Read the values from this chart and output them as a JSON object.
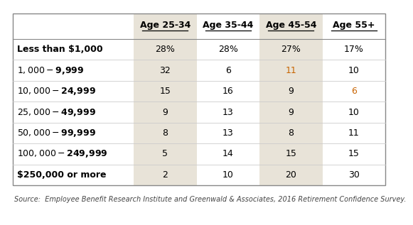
{
  "columns": [
    "Age 25-34",
    "Age 35-44",
    "Age 45-54",
    "Age 55+"
  ],
  "rows": [
    "Less than $1,000",
    "$1,000 - $9,999",
    "$10,000 - $24,999",
    "$25,000 - $49,999",
    "$50,000 - $99,999",
    "$100,000 - $249,999",
    "$250,000 or more"
  ],
  "values": [
    [
      "28%",
      "28%",
      "27%",
      "17%"
    ],
    [
      "32",
      "6",
      "11",
      "10"
    ],
    [
      "15",
      "16",
      "9",
      "6"
    ],
    [
      "9",
      "13",
      "9",
      "10"
    ],
    [
      "8",
      "13",
      "8",
      "11"
    ],
    [
      "5",
      "14",
      "15",
      "15"
    ],
    [
      "2",
      "10",
      "20",
      "30"
    ]
  ],
  "col_colors": [
    "#e8e3d8",
    "#ffffff",
    "#e8e3d8",
    "#ffffff"
  ],
  "value_colors": [
    [
      "#000000",
      "#000000",
      "#000000",
      "#000000"
    ],
    [
      "#000000",
      "#000000",
      "#c86400",
      "#000000"
    ],
    [
      "#000000",
      "#000000",
      "#000000",
      "#c86400"
    ],
    [
      "#000000",
      "#000000",
      "#000000",
      "#000000"
    ],
    [
      "#000000",
      "#000000",
      "#000000",
      "#000000"
    ],
    [
      "#000000",
      "#000000",
      "#000000",
      "#000000"
    ],
    [
      "#000000",
      "#000000",
      "#000000",
      "#000000"
    ]
  ],
  "bg_color": "#ffffff",
  "border_color": "#aaaaaa",
  "row_line_color": "#cccccc",
  "source_text": "Source:  Employee Benefit Research Institute and Greenwald & Associates, 2016 Retirement Confidence Survey.",
  "data_font_size": 9.0,
  "header_font_size": 9.0,
  "row_label_font_size": 9.0,
  "source_font_size": 7.0
}
